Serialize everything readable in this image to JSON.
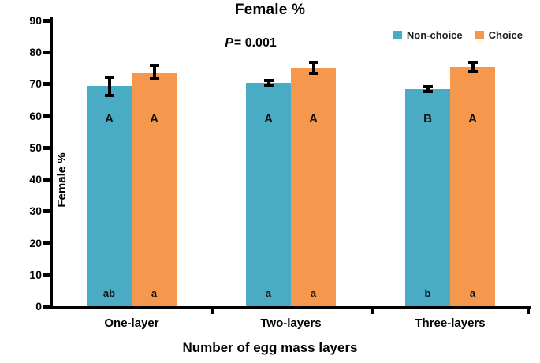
{
  "title": "Female %",
  "p_annotation": {
    "label": "P",
    "value": "= 0.001"
  },
  "chart_data": {
    "type": "bar",
    "title": "Female %",
    "annotation": "P= 0.001",
    "categories": [
      "One-layer",
      "Two-layers",
      "Three-layers"
    ],
    "series": [
      {
        "name": "Non-choice",
        "color": "#4AABC5",
        "values": [
          69.3,
          70.4,
          68.4
        ],
        "errors": [
          2.8,
          0.7,
          0.7
        ],
        "letters_upper": [
          "A",
          "A",
          "B"
        ],
        "letters_lower": [
          "ab",
          "a",
          "b"
        ]
      },
      {
        "name": "Choice",
        "color": "#F5974C",
        "values": [
          73.7,
          75.1,
          75.4
        ],
        "errors": [
          2.2,
          1.8,
          1.5
        ],
        "letters_upper": [
          "A",
          "A",
          "A"
        ],
        "letters_lower": [
          "a",
          "a",
          "a"
        ]
      }
    ],
    "xlabel": "Number of egg mass layers",
    "ylabel": "Female %",
    "ylim": [
      0,
      90
    ],
    "y_ticks": [
      0,
      10,
      20,
      30,
      40,
      50,
      60,
      70,
      80,
      90
    ],
    "legend_position": "top-right",
    "grid": false
  }
}
